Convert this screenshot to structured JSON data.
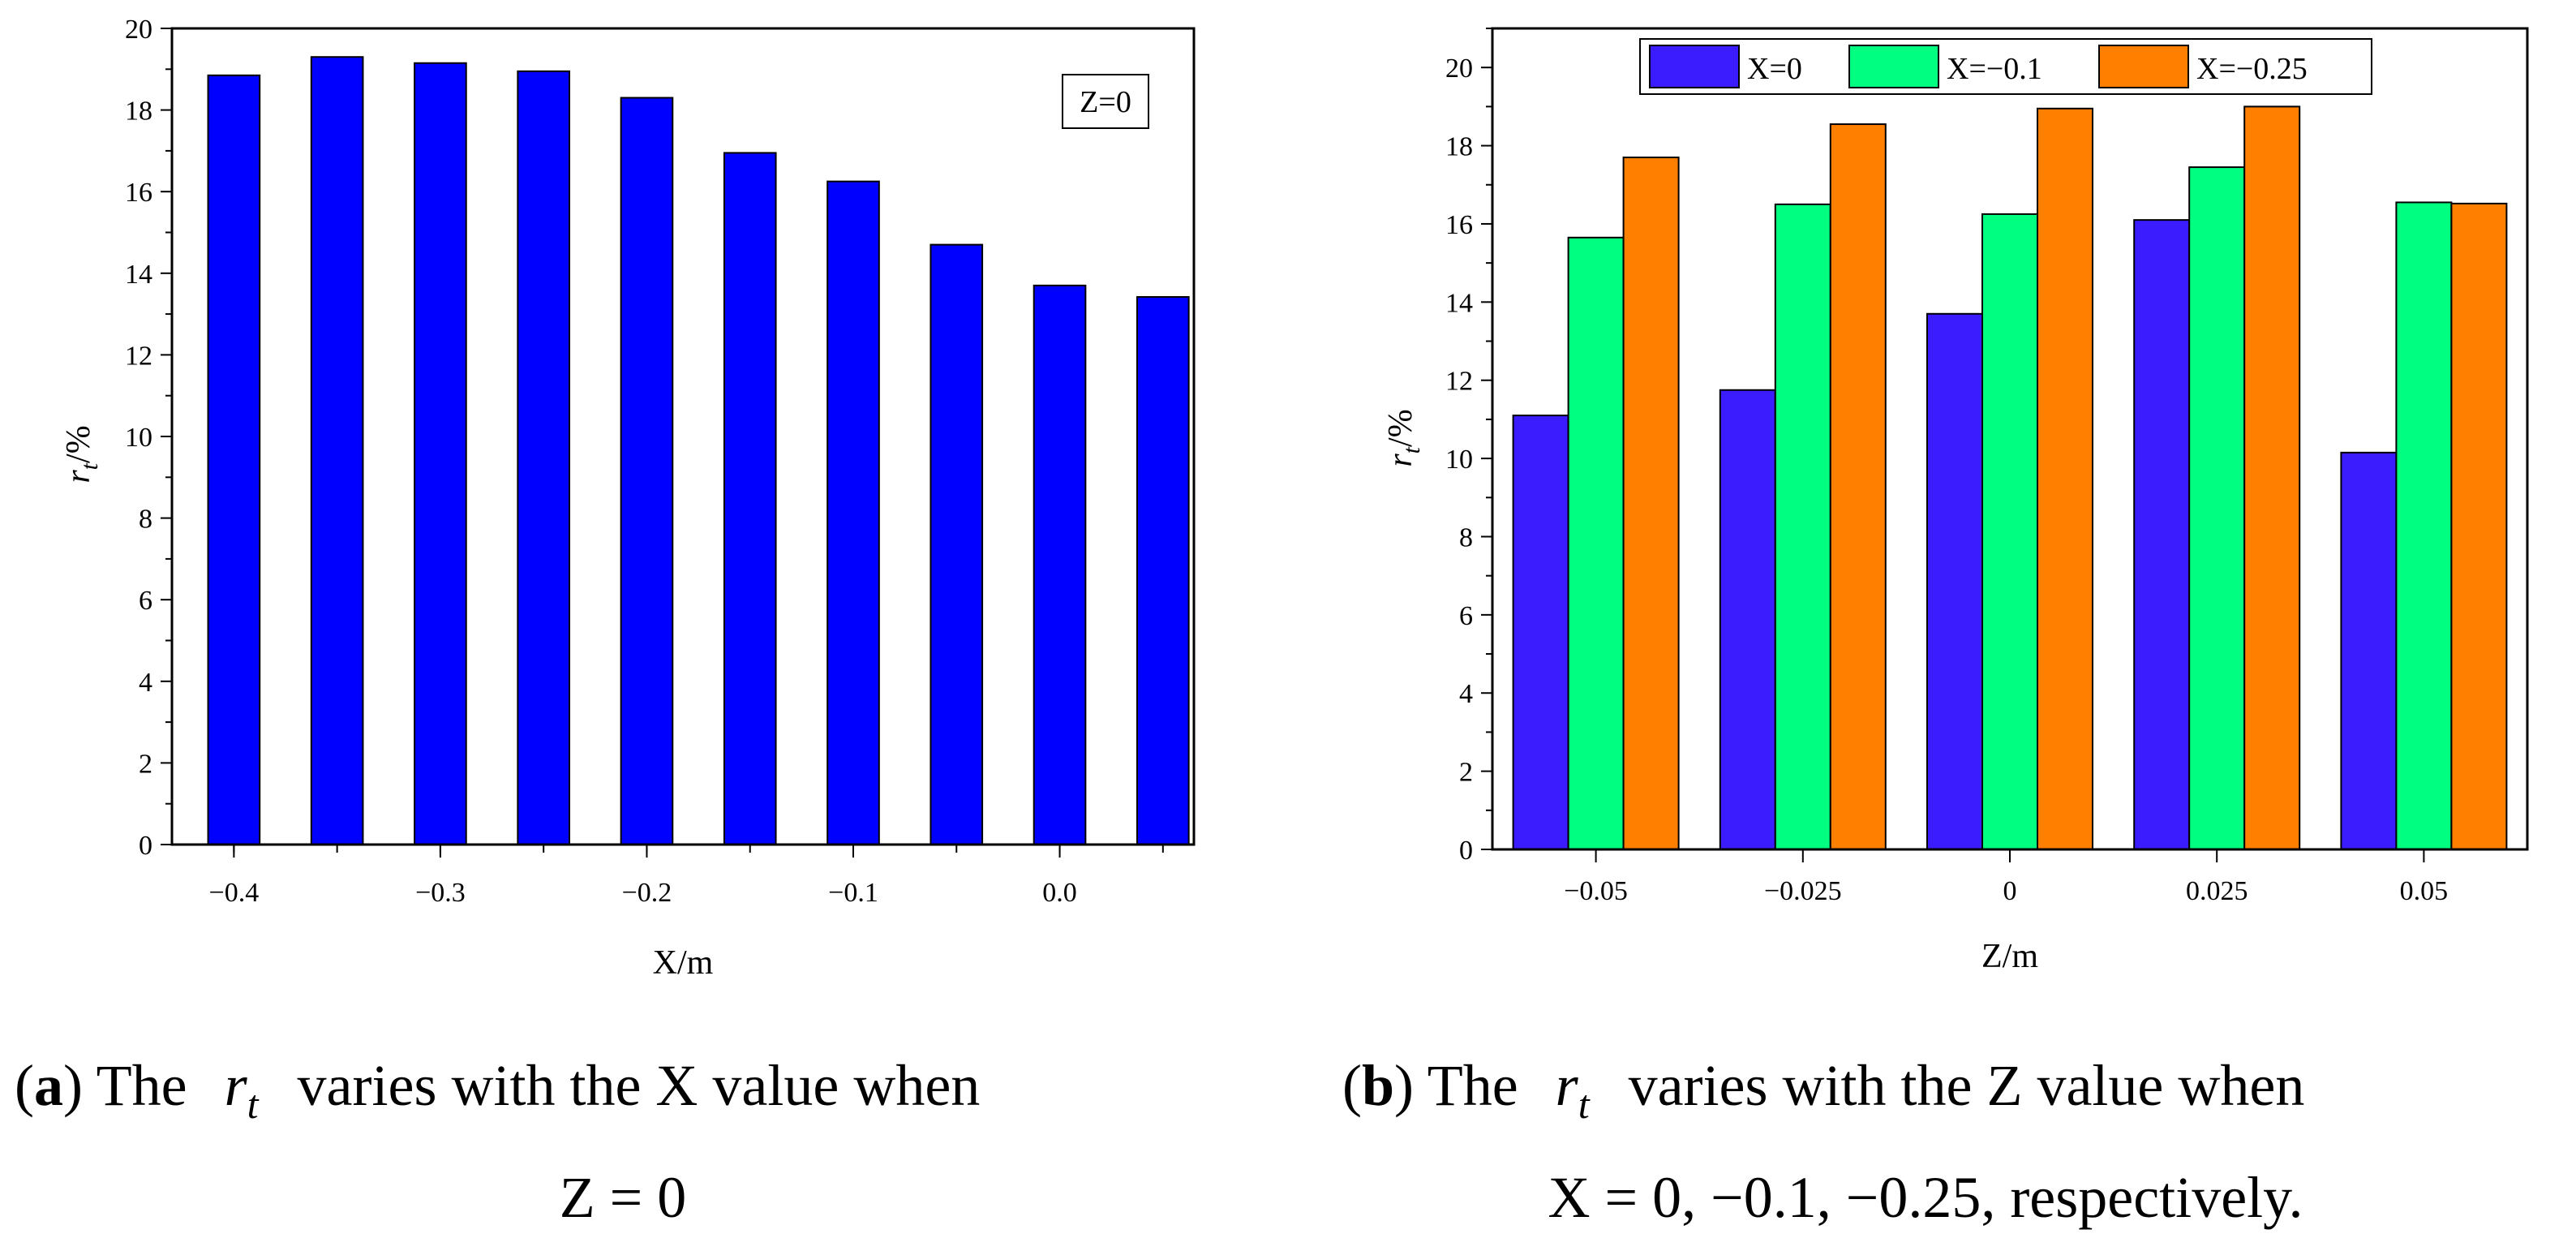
{
  "chart_data": [
    {
      "type": "bar",
      "panel": "a",
      "categories": [
        "-0.4",
        "-0.35",
        "-0.3",
        "-0.25",
        "-0.2",
        "-0.15",
        "-0.1",
        "-0.05",
        "0.0",
        "0.05"
      ],
      "x_values": [
        -0.4,
        -0.35,
        -0.3,
        -0.25,
        -0.2,
        -0.15,
        -0.1,
        -0.05,
        0.0,
        0.05
      ],
      "values": [
        18.85,
        19.3,
        19.15,
        18.95,
        18.3,
        16.95,
        16.25,
        14.7,
        13.7,
        13.42
      ],
      "bar_color": "#0000FF",
      "xlim": [
        -0.43,
        0.065
      ],
      "ylim": [
        0,
        20
      ],
      "xticks": [
        -0.4,
        -0.3,
        -0.2,
        -0.1,
        0.0
      ],
      "xtick_labels": [
        "−0.4",
        "−0.3",
        "−0.2",
        "−0.1",
        "0.0"
      ],
      "yticks": [
        0,
        2,
        4,
        6,
        8,
        10,
        12,
        14,
        16,
        18,
        20
      ],
      "ytick_labels": [
        "0",
        "2",
        "4",
        "6",
        "8",
        "10",
        "12",
        "14",
        "16",
        "18",
        "20"
      ],
      "xlabel": "X/m",
      "ylabel_main": "r",
      "ylabel_sub": "t",
      "ylabel_suffix": "/%",
      "annotation": "Z=0",
      "legend": "none"
    },
    {
      "type": "bar",
      "panel": "b",
      "categories": [
        "−0.05",
        "−0.025",
        "0",
        "0.025",
        "0.05"
      ],
      "series": [
        {
          "name": "X=0",
          "color": "#3B1CFF",
          "values": [
            11.1,
            11.75,
            13.7,
            16.1,
            10.15
          ]
        },
        {
          "name": "X=−0.1",
          "color": "#00FF80",
          "values": [
            15.65,
            16.5,
            16.25,
            17.45,
            16.55
          ]
        },
        {
          "name": "X=−0.25",
          "color": "#FF7F00",
          "values": [
            17.7,
            18.55,
            18.95,
            19.0,
            16.52
          ]
        }
      ],
      "ylim": [
        0,
        21
      ],
      "yticks": [
        0,
        2,
        4,
        6,
        8,
        10,
        12,
        14,
        16,
        18,
        20
      ],
      "ytick_labels": [
        "0",
        "2",
        "4",
        "6",
        "8",
        "10",
        "12",
        "14",
        "16",
        "18",
        "20"
      ],
      "xlabel": "Z/m",
      "ylabel_main": "r",
      "ylabel_sub": "t",
      "ylabel_suffix": "/%",
      "legend": "top-center"
    }
  ],
  "captions": {
    "a": {
      "label": "a",
      "line1_pre": "The",
      "symbol": "r",
      "symbol_sub": "t",
      "line1_post": "varies with the X value when",
      "line2": "Z = 0"
    },
    "b": {
      "label": "b",
      "line1_pre": "The",
      "symbol": "r",
      "symbol_sub": "t",
      "line1_post": "varies with the Z value when",
      "line2": "X = 0, −0.1, −0.25, respectively."
    }
  }
}
